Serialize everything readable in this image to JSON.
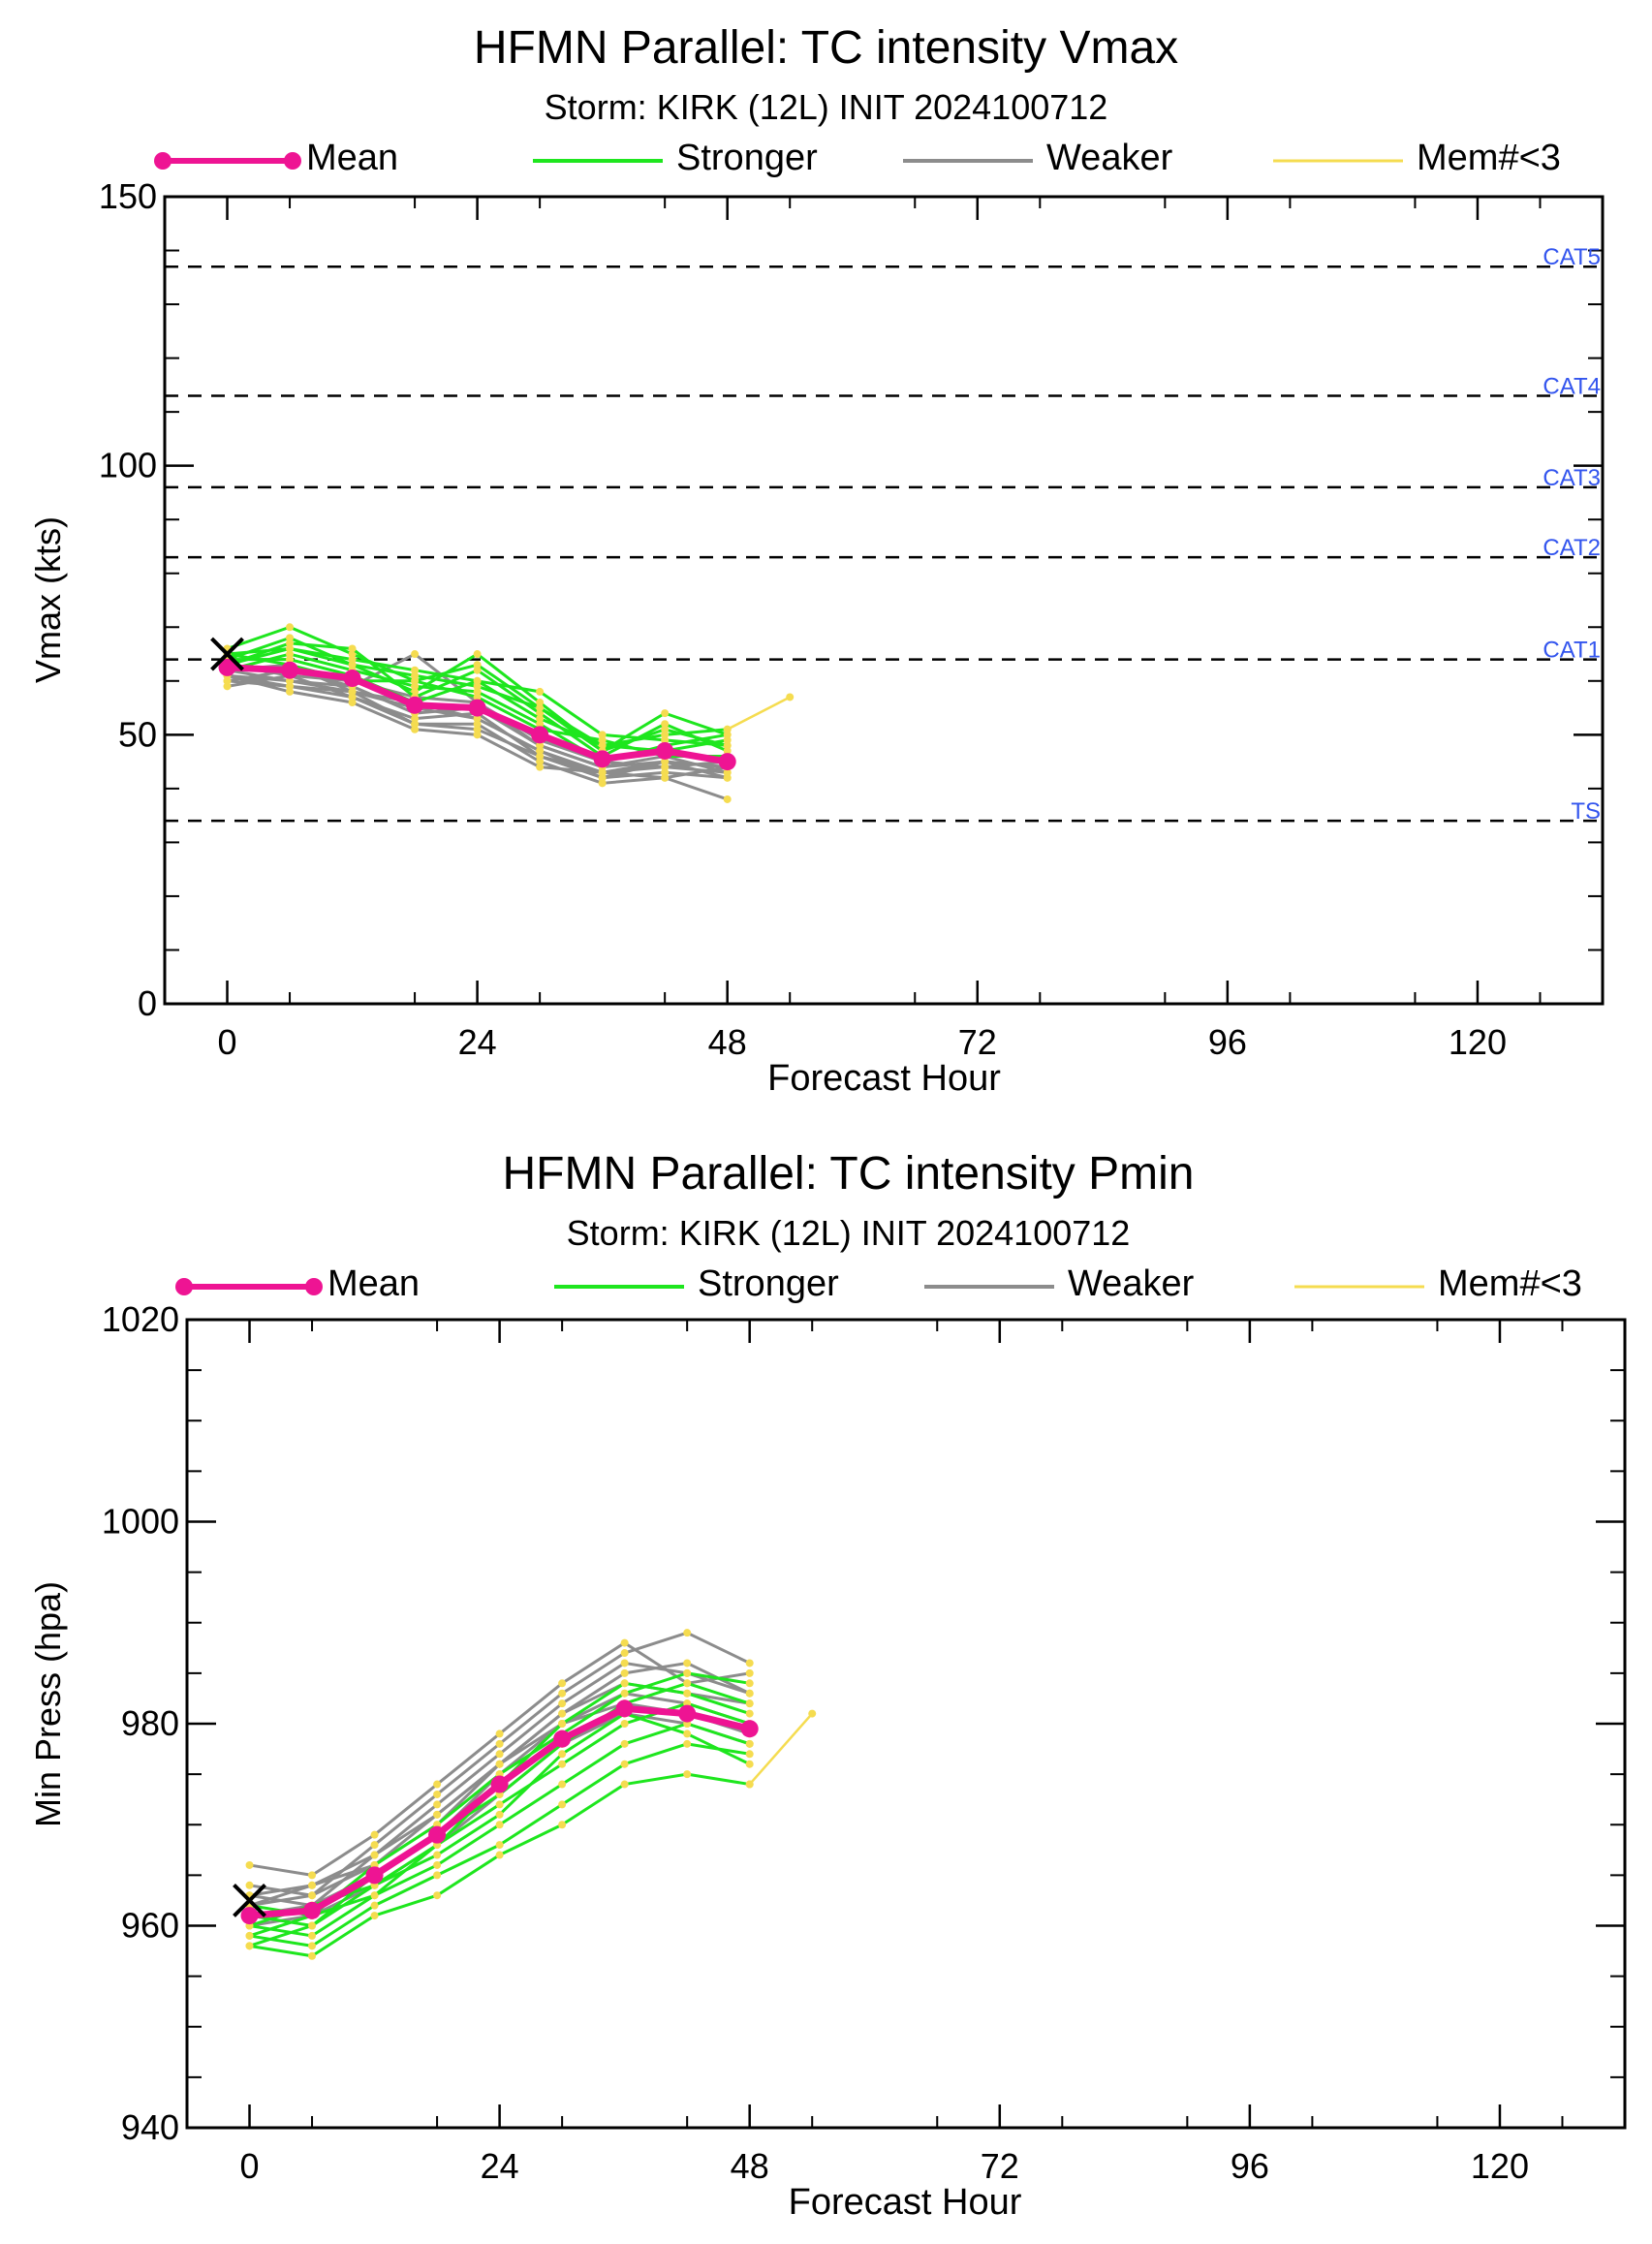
{
  "charts": [
    {
      "id": "vmax",
      "title": "HFMN Parallel: TC intensity Vmax",
      "subtitle": "Storm: KIRK (12L) INIT 2024100712",
      "xlabel": "Forecast Hour",
      "ylabel": "Vmax (kts)",
      "x_ticks": [
        "0",
        "24",
        "48",
        "72",
        "96",
        "120"
      ],
      "y_ticks": [
        "0",
        "50",
        "100",
        "150"
      ]
    },
    {
      "id": "pmin",
      "title": "HFMN Parallel: TC intensity Pmin",
      "subtitle": "Storm: KIRK (12L) INIT 2024100712",
      "xlabel": "Forecast Hour",
      "ylabel": "Min Press (hpa)",
      "x_ticks": [
        "0",
        "24",
        "48",
        "72",
        "96",
        "120"
      ],
      "y_ticks": [
        "940",
        "960",
        "980",
        "1000",
        "1020"
      ]
    }
  ],
  "legend": {
    "mean": "Mean",
    "stronger": "Stronger",
    "weaker": "Weaker",
    "few": "Mem#<3"
  },
  "colors": {
    "mean": "#ee1493",
    "stronger": "#1ee61e",
    "weaker": "#8c8c8c",
    "few": "#f5dc50",
    "category_lines": "#000000",
    "category_labels": "#3355ee"
  },
  "chart_data": [
    {
      "type": "line",
      "xlim": [
        -6,
        132
      ],
      "ylim": [
        0,
        150
      ],
      "observed": {
        "x": 0,
        "y": 65
      },
      "category_lines": [
        {
          "label": "TS",
          "value": 34
        },
        {
          "label": "CAT1",
          "value": 64
        },
        {
          "label": "CAT2",
          "value": 83
        },
        {
          "label": "CAT3",
          "value": 96
        },
        {
          "label": "CAT4",
          "value": 113
        },
        {
          "label": "CAT5",
          "value": 137
        }
      ],
      "x": [
        0,
        6,
        12,
        18,
        24,
        30,
        36,
        42,
        48
      ],
      "series": [
        {
          "name": "Mean",
          "group": "mean",
          "values": [
            62.5,
            62,
            60.5,
            55.5,
            55,
            50,
            45.5,
            47,
            45
          ]
        },
        {
          "group": "stronger",
          "values": [
            66,
            70,
            65,
            60,
            63,
            55,
            48,
            50,
            51
          ]
        },
        {
          "group": "stronger",
          "values": [
            64,
            68,
            63,
            58,
            65,
            56,
            47,
            54,
            50
          ]
        },
        {
          "group": "stronger",
          "values": [
            65,
            66,
            64,
            62,
            60,
            58,
            50,
            49,
            48
          ]
        },
        {
          "group": "stronger",
          "values": [
            63,
            67,
            66,
            57,
            62,
            54,
            46,
            52,
            47
          ]
        },
        {
          "group": "stronger",
          "values": [
            62,
            65,
            62,
            59,
            58,
            52,
            45,
            48,
            50
          ]
        },
        {
          "group": "stronger",
          "values": [
            64,
            64,
            61,
            56,
            60,
            53,
            48,
            47,
            49
          ]
        },
        {
          "group": "stronger",
          "values": [
            65,
            63,
            60,
            60,
            57,
            51,
            49,
            46,
            46
          ]
        },
        {
          "group": "stronger",
          "values": [
            63,
            66,
            63,
            61,
            59,
            55,
            47,
            51,
            48
          ]
        },
        {
          "group": "weaker",
          "values": [
            61,
            60,
            59,
            65,
            56,
            48,
            44,
            45,
            44
          ]
        },
        {
          "group": "weaker",
          "values": [
            60,
            59,
            58,
            55,
            53,
            47,
            43,
            44,
            43
          ]
        },
        {
          "group": "weaker",
          "values": [
            59,
            61,
            57,
            53,
            54,
            46,
            42,
            43,
            42
          ]
        },
        {
          "group": "weaker",
          "values": [
            62,
            60,
            58,
            52,
            52,
            45,
            41,
            42,
            38
          ]
        },
        {
          "group": "weaker",
          "values": [
            61,
            58,
            56,
            51,
            50,
            44,
            43,
            45,
            44
          ]
        },
        {
          "group": "weaker",
          "values": [
            60,
            62,
            59,
            54,
            55,
            48,
            44,
            46,
            43
          ]
        },
        {
          "group": "weaker",
          "values": [
            63,
            61,
            60,
            57,
            56,
            49,
            45,
            44,
            45
          ]
        },
        {
          "group": "weaker",
          "values": [
            62,
            63,
            58,
            56,
            53,
            47,
            42,
            45,
            42
          ]
        },
        {
          "group": "weaker",
          "values": [
            61,
            59,
            57,
            52,
            51,
            46,
            43,
            42,
            44
          ]
        },
        {
          "group": "few",
          "x": [
            48,
            54
          ],
          "values": [
            51,
            57
          ]
        }
      ]
    },
    {
      "type": "line",
      "xlim": [
        -6,
        132
      ],
      "ylim": [
        940,
        1020
      ],
      "observed": {
        "x": 0,
        "y": 962.5
      },
      "x": [
        0,
        6,
        12,
        18,
        24,
        30,
        36,
        42,
        48
      ],
      "series": [
        {
          "name": "Mean",
          "group": "mean",
          "values": [
            961,
            961.5,
            965,
            969,
            974,
            978.5,
            981.5,
            981,
            979.5
          ]
        },
        {
          "group": "stronger",
          "values": [
            958,
            957,
            961,
            963,
            967,
            970,
            974,
            975,
            974
          ]
        },
        {
          "group": "stronger",
          "values": [
            959,
            958,
            962,
            965,
            968,
            972,
            976,
            978,
            977
          ]
        },
        {
          "group": "stronger",
          "values": [
            960,
            959,
            963,
            966,
            970,
            974,
            978,
            980,
            978
          ]
        },
        {
          "group": "stronger",
          "values": [
            958,
            960,
            964,
            968,
            972,
            976,
            980,
            982,
            980
          ]
        },
        {
          "group": "stronger",
          "values": [
            961,
            960,
            965,
            969,
            973,
            978,
            982,
            984,
            982
          ]
        },
        {
          "group": "stronger",
          "values": [
            962,
            961,
            966,
            970,
            975,
            979,
            983,
            985,
            984
          ]
        },
        {
          "group": "stronger",
          "values": [
            960,
            962,
            964,
            967,
            971,
            977,
            981,
            979,
            976
          ]
        },
        {
          "group": "stronger",
          "values": [
            959,
            961,
            963,
            968,
            974,
            980,
            984,
            983,
            981
          ]
        },
        {
          "group": "weaker",
          "values": [
            963,
            964,
            967,
            971,
            976,
            981,
            985,
            986,
            983
          ]
        },
        {
          "group": "weaker",
          "values": [
            964,
            963,
            968,
            973,
            978,
            983,
            987,
            989,
            986
          ]
        },
        {
          "group": "weaker",
          "values": [
            966,
            965,
            969,
            974,
            979,
            984,
            988,
            984,
            985
          ]
        },
        {
          "group": "weaker",
          "values": [
            962,
            963,
            966,
            970,
            976,
            980,
            983,
            982,
            980
          ]
        },
        {
          "group": "weaker",
          "values": [
            963,
            962,
            967,
            972,
            977,
            982,
            986,
            985,
            983
          ]
        },
        {
          "group": "weaker",
          "values": [
            961,
            962,
            965,
            969,
            975,
            980,
            982,
            981,
            979
          ]
        },
        {
          "group": "weaker",
          "values": [
            962,
            964,
            966,
            971,
            976,
            981,
            984,
            983,
            982
          ]
        },
        {
          "group": "weaker",
          "values": [
            960,
            961,
            964,
            968,
            973,
            978,
            981,
            980,
            978
          ]
        },
        {
          "group": "few",
          "x": [
            48,
            54
          ],
          "values": [
            974,
            981
          ]
        }
      ]
    }
  ]
}
